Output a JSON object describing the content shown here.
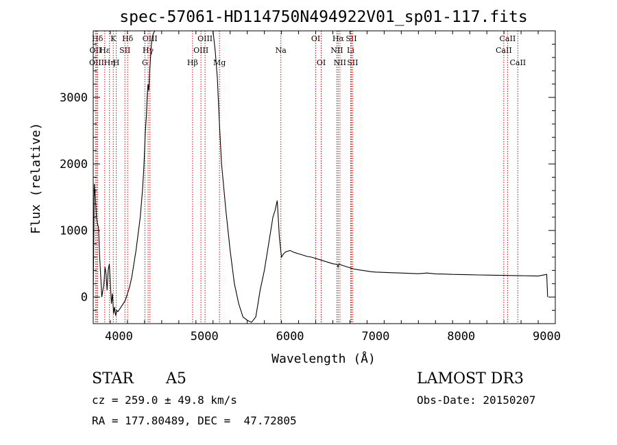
{
  "chart_data": {
    "type": "line",
    "title": "spec-57061-HD114750N494922V01_sp01-117.fits",
    "xlabel": "Wavelength (Å)",
    "ylabel": "Flux (relative)",
    "xlim": [
      3700,
      9100
    ],
    "ylim": [
      -400,
      4000
    ],
    "xticks": [
      4000,
      5000,
      6000,
      7000,
      8000,
      9000
    ],
    "yticks": [
      0,
      1000,
      2000,
      3000
    ],
    "line_color": "#000000",
    "marker_color": "#cc0000",
    "series": [
      {
        "x": [
          3700,
          3712,
          3725,
          3738,
          3750,
          3762,
          3775,
          3788,
          3800,
          3812,
          3825,
          3838,
          3850,
          3862,
          3875,
          3888,
          3900,
          3912,
          3925,
          3938,
          3950,
          3962,
          3975,
          3988,
          4000,
          4025,
          4050,
          4075,
          4100,
          4125,
          4150,
          4175,
          4200,
          4225,
          4250,
          4275,
          4290,
          4300,
          4310,
          4320,
          4330,
          4340,
          4350,
          4360,
          4370,
          4380,
          4390,
          4400,
          4410,
          4420,
          5100,
          5125,
          5150,
          5175,
          5200,
          5250,
          5300,
          5350,
          5400,
          5450,
          5500,
          5550,
          5600,
          5625,
          5650,
          5700,
          5750,
          5800,
          5825,
          5850,
          5875,
          5900,
          5925,
          5950,
          6000,
          6050,
          6100,
          6150,
          6200,
          6250,
          6300,
          6350,
          6400,
          6450,
          6500,
          6550,
          6563,
          6575,
          6600,
          6650,
          6700,
          6750,
          6800,
          6850,
          6900,
          6950,
          7000,
          7100,
          7200,
          7300,
          7400,
          7500,
          7600,
          7700,
          7800,
          7900,
          8000,
          8100,
          8200,
          8300,
          8400,
          8500,
          8600,
          8700,
          8800,
          8900,
          9000,
          9010
        ],
        "y": [
          0,
          1700,
          1500,
          1200,
          1100,
          1050,
          600,
          300,
          0,
          100,
          200,
          450,
          350,
          100,
          400,
          500,
          200,
          -100,
          50,
          -250,
          -150,
          -280,
          -200,
          -220,
          -200,
          -150,
          -100,
          -50,
          50,
          150,
          300,
          500,
          700,
          950,
          1200,
          1600,
          1900,
          2200,
          2500,
          2700,
          3000,
          3200,
          3100,
          3400,
          3600,
          3800,
          3900,
          3950,
          3980,
          4000,
          4000,
          3700,
          3300,
          2600,
          2000,
          1300,
          700,
          200,
          -100,
          -300,
          -350,
          -380,
          -300,
          -100,
          100,
          400,
          800,
          1200,
          1300,
          1450,
          900,
          600,
          650,
          680,
          700,
          670,
          650,
          630,
          610,
          600,
          580,
          560,
          540,
          520,
          500,
          490,
          450,
          500,
          480,
          460,
          440,
          420,
          410,
          400,
          390,
          380,
          375,
          370,
          365,
          360,
          355,
          350,
          360,
          348,
          345,
          340,
          338,
          335,
          332,
          330,
          328,
          325,
          322,
          320,
          318,
          315,
          340,
          0
        ]
      }
    ],
    "lines": [
      {
        "name": "Hδ",
        "x": 3750,
        "row": 1
      },
      {
        "name": "OII",
        "x": 3727,
        "row": 2
      },
      {
        "name": "OIII",
        "x": 3740,
        "row": 3
      },
      {
        "name": "Hε",
        "x": 3835,
        "row": 2
      },
      {
        "name": "Hη",
        "x": 3890,
        "row": 3
      },
      {
        "name": "K",
        "x": 3934,
        "row": 1
      },
      {
        "name": "H",
        "x": 3969,
        "row": 3
      },
      {
        "name": "Hδ",
        "x": 4102,
        "row": 1
      },
      {
        "name": "SII",
        "x": 4070,
        "row": 2
      },
      {
        "name": "OIII",
        "x": 4363,
        "row": 1
      },
      {
        "name": "Hγ",
        "x": 4341,
        "row": 2
      },
      {
        "name": "G",
        "x": 4304,
        "row": 3
      },
      {
        "name": "Hβ",
        "x": 4861,
        "row": 3
      },
      {
        "name": "OIII",
        "x": 4959,
        "row": 2
      },
      {
        "name": "OIII",
        "x": 5007,
        "row": 1
      },
      {
        "name": "Mg",
        "x": 5175,
        "row": 3
      },
      {
        "name": "Na",
        "x": 5893,
        "row": 2
      },
      {
        "name": "OI",
        "x": 6300,
        "row": 1
      },
      {
        "name": "OI",
        "x": 6364,
        "row": 3
      },
      {
        "name": "Hα",
        "x": 6563,
        "row": 1
      },
      {
        "name": "NII",
        "x": 6548,
        "row": 2
      },
      {
        "name": "NII",
        "x": 6583,
        "row": 3
      },
      {
        "name": "SII",
        "x": 6716,
        "row": 1
      },
      {
        "name": "Li",
        "x": 6708,
        "row": 2
      },
      {
        "name": "SII",
        "x": 6731,
        "row": 3
      },
      {
        "name": "CaII",
        "x": 8542,
        "row": 1
      },
      {
        "name": "CaII",
        "x": 8498,
        "row": 2
      },
      {
        "name": "CaII",
        "x": 8662,
        "row": 3
      }
    ]
  },
  "info": {
    "class": "STAR",
    "subclass": "A5",
    "survey": "LAMOST DR3",
    "cz": "cz = 259.0 ± 49.8 km/s",
    "obs_date": "Obs-Date: 20150207",
    "coords": "RA = 177.80489, DEC =  47.72805"
  }
}
